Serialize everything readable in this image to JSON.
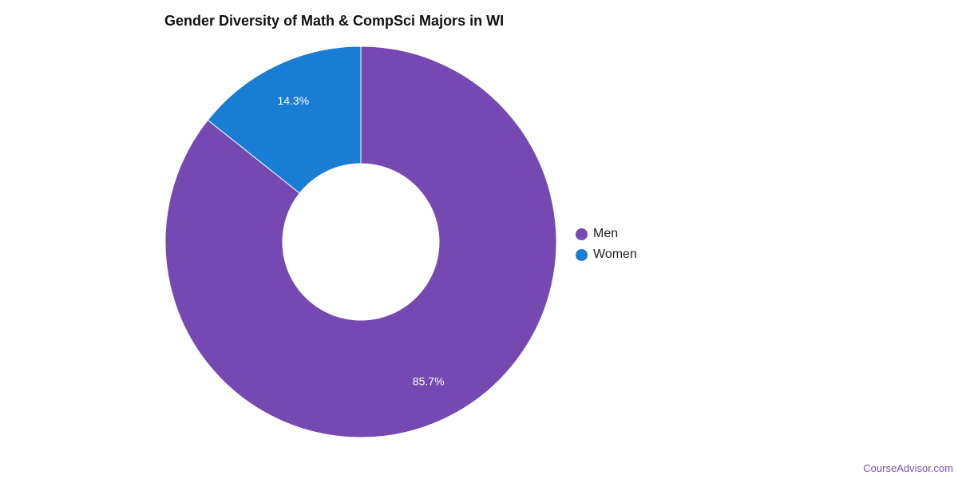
{
  "title": "Gender Diversity of Math & CompSci Majors in WI",
  "watermark": "CourseAdvisor.com",
  "chart_data": {
    "type": "pie",
    "variant": "donut",
    "title": "Gender Diversity of Math & CompSci Majors in WI",
    "legend_position": "right",
    "categories": [
      "Men",
      "Women"
    ],
    "values": [
      85.7,
      14.3
    ],
    "unit": "%",
    "data_labels": [
      "85.7%",
      "14.3%"
    ],
    "colors": [
      "#7549b1",
      "#1a7dd4"
    ]
  },
  "legend": [
    {
      "label": "Men",
      "color": "#7549b1"
    },
    {
      "label": "Women",
      "color": "#1a7dd4"
    }
  ]
}
